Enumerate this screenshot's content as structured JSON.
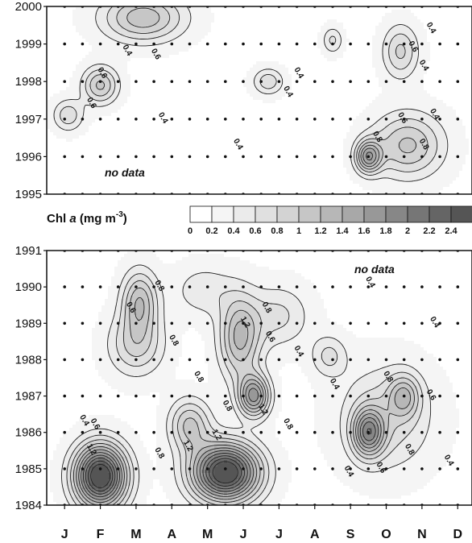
{
  "chart_data": {
    "type": "heatmap",
    "variable": "Chl a",
    "colorbar": {
      "title_main": "Chl ",
      "title_italic": "a",
      "title_unit": " (mg m",
      "title_exp": "-3",
      "title_close": ")",
      "levels": [
        0,
        0.2,
        0.4,
        0.6,
        0.8,
        1,
        1.2,
        1.4,
        1.6,
        1.8,
        2,
        2.2,
        2.4
      ],
      "tick_labels": [
        "0",
        "0.2",
        "0.4",
        "0.6",
        "0.8",
        "1",
        "1.2",
        "1.4",
        "1.6",
        "1.8",
        "2",
        "2.2",
        "2.4"
      ],
      "colors": [
        "#ffffff",
        "#f5f5f5",
        "#ebebeb",
        "#e0e0e0",
        "#d3d3d3",
        "#c6c6c6",
        "#b7b7b7",
        "#a8a8a8",
        "#989898",
        "#878787",
        "#767676",
        "#656565",
        "#555555"
      ]
    },
    "x_month_labels": [
      "J",
      "F",
      "M",
      "A",
      "M",
      "J",
      "J",
      "A",
      "S",
      "O",
      "N",
      "D"
    ],
    "panels": [
      {
        "name": "top",
        "y_ticks": [
          "1995",
          "1996",
          "1997",
          "1998",
          "1999",
          "2000"
        ],
        "ylim": [
          1995,
          2000
        ],
        "no_data_label": "no data",
        "peaks": [
          {
            "month": 3.2,
            "year": 1999.7,
            "value": 1.0,
            "sx": 0.8,
            "sy": 0.45
          },
          {
            "month": 2.0,
            "year": 1997.9,
            "value": 0.9,
            "sx": 0.35,
            "sy": 0.35
          },
          {
            "month": 1.1,
            "year": 1997.1,
            "value": 0.6,
            "sx": 0.3,
            "sy": 0.3
          },
          {
            "month": 6.7,
            "year": 1998.0,
            "value": 0.6,
            "sx": 0.3,
            "sy": 0.25
          },
          {
            "month": 9.5,
            "year": 1996.0,
            "value": 1.3,
            "sx": 0.25,
            "sy": 0.3
          },
          {
            "month": 10.6,
            "year": 1996.3,
            "value": 0.9,
            "sx": 0.7,
            "sy": 0.6
          },
          {
            "month": 10.4,
            "year": 1998.8,
            "value": 0.7,
            "sx": 0.35,
            "sy": 0.5
          },
          {
            "month": 8.5,
            "year": 1999.1,
            "value": 0.5,
            "sx": 0.2,
            "sy": 0.25
          }
        ],
        "contour_labels": [
          {
            "month": 2.0,
            "year": 1998.2,
            "text": "0.6"
          },
          {
            "month": 2.7,
            "year": 1998.8,
            "text": "0.4"
          },
          {
            "month": 3.5,
            "year": 1998.7,
            "text": "0.6"
          },
          {
            "month": 1.7,
            "year": 1997.4,
            "text": "0.6"
          },
          {
            "month": 3.7,
            "year": 1997.0,
            "text": "0.4"
          },
          {
            "month": 5.8,
            "year": 1996.3,
            "text": "0.4"
          },
          {
            "month": 7.2,
            "year": 1997.7,
            "text": "0.4"
          },
          {
            "month": 7.5,
            "year": 1998.2,
            "text": "0.4"
          },
          {
            "month": 9.7,
            "year": 1996.5,
            "text": "0.8"
          },
          {
            "month": 10.4,
            "year": 1997.0,
            "text": "0.6"
          },
          {
            "month": 11.0,
            "year": 1996.3,
            "text": "0.8"
          },
          {
            "month": 11.3,
            "year": 1997.1,
            "text": "0.4"
          },
          {
            "month": 11.0,
            "year": 1998.4,
            "text": "0.4"
          },
          {
            "month": 10.7,
            "year": 1998.9,
            "text": "0.6"
          },
          {
            "month": 11.2,
            "year": 1999.4,
            "text": "0.4"
          }
        ]
      },
      {
        "name": "bottom",
        "y_ticks": [
          "1984",
          "1985",
          "1986",
          "1987",
          "1988",
          "1989",
          "1990",
          "1991"
        ],
        "ylim": [
          1984,
          1991
        ],
        "no_data_label": "no data",
        "peaks": [
          {
            "month": 2.0,
            "year": 1984.8,
            "value": 2.6,
            "sx": 0.5,
            "sy": 0.6
          },
          {
            "month": 5.5,
            "year": 1984.9,
            "value": 2.6,
            "sx": 0.65,
            "sy": 0.55
          },
          {
            "month": 3.1,
            "year": 1989.6,
            "value": 1.0,
            "sx": 0.35,
            "sy": 0.6
          },
          {
            "month": 3.0,
            "year": 1988.4,
            "value": 0.7,
            "sx": 0.55,
            "sy": 0.6
          },
          {
            "month": 5.9,
            "year": 1988.6,
            "value": 1.1,
            "sx": 0.4,
            "sy": 0.8
          },
          {
            "month": 6.3,
            "year": 1987.0,
            "value": 1.5,
            "sx": 0.3,
            "sy": 0.4
          },
          {
            "month": 4.5,
            "year": 1986.2,
            "value": 0.9,
            "sx": 0.4,
            "sy": 0.5
          },
          {
            "month": 9.5,
            "year": 1986.0,
            "value": 1.4,
            "sx": 0.3,
            "sy": 0.45
          },
          {
            "month": 10.5,
            "year": 1987.0,
            "value": 0.8,
            "sx": 0.3,
            "sy": 0.4
          },
          {
            "month": 10.0,
            "year": 1986.4,
            "value": 0.6,
            "sx": 0.9,
            "sy": 1.0
          },
          {
            "month": 8.4,
            "year": 1988.1,
            "value": 0.5,
            "sx": 0.35,
            "sy": 0.4
          },
          {
            "month": 7.0,
            "year": 1989.2,
            "value": 0.5,
            "sx": 0.6,
            "sy": 0.6
          },
          {
            "month": 4.9,
            "year": 1989.9,
            "value": 0.4,
            "sx": 0.6,
            "sy": 0.5
          }
        ],
        "contour_labels": [
          {
            "month": 2.8,
            "year": 1989.4,
            "text": "0.6"
          },
          {
            "month": 4.0,
            "year": 1988.5,
            "text": "0.8"
          },
          {
            "month": 3.6,
            "year": 1990.0,
            "text": "0.8"
          },
          {
            "month": 6.0,
            "year": 1989.0,
            "text": "1.2"
          },
          {
            "month": 6.7,
            "year": 1988.6,
            "text": "0.6"
          },
          {
            "month": 6.6,
            "year": 1989.4,
            "text": "0.8"
          },
          {
            "month": 7.5,
            "year": 1988.2,
            "text": "0.4"
          },
          {
            "month": 4.7,
            "year": 1987.5,
            "text": "0.8"
          },
          {
            "month": 5.5,
            "year": 1986.7,
            "text": "0.8"
          },
          {
            "month": 6.5,
            "year": 1986.6,
            "text": "1.2"
          },
          {
            "month": 7.2,
            "year": 1986.2,
            "text": "0.8"
          },
          {
            "month": 5.2,
            "year": 1985.9,
            "text": "1.2"
          },
          {
            "month": 4.4,
            "year": 1985.6,
            "text": "1.2"
          },
          {
            "month": 1.8,
            "year": 1986.2,
            "text": "0.6"
          },
          {
            "month": 1.5,
            "year": 1986.3,
            "text": "0.4"
          },
          {
            "month": 1.7,
            "year": 1985.5,
            "text": "1.2"
          },
          {
            "month": 3.6,
            "year": 1985.4,
            "text": "0.8"
          },
          {
            "month": 8.9,
            "year": 1984.9,
            "text": "0.4"
          },
          {
            "month": 9.8,
            "year": 1985.0,
            "text": "0.6"
          },
          {
            "month": 10.6,
            "year": 1985.5,
            "text": "0.8"
          },
          {
            "month": 10.0,
            "year": 1987.5,
            "text": "0.8"
          },
          {
            "month": 11.2,
            "year": 1987.0,
            "text": "0.6"
          },
          {
            "month": 11.3,
            "year": 1989.0,
            "text": "0.4"
          },
          {
            "month": 9.5,
            "year": 1990.1,
            "text": "0.4"
          },
          {
            "month": 11.7,
            "year": 1985.2,
            "text": "0.4"
          },
          {
            "month": 8.5,
            "year": 1987.3,
            "text": "0.4"
          }
        ]
      }
    ]
  }
}
